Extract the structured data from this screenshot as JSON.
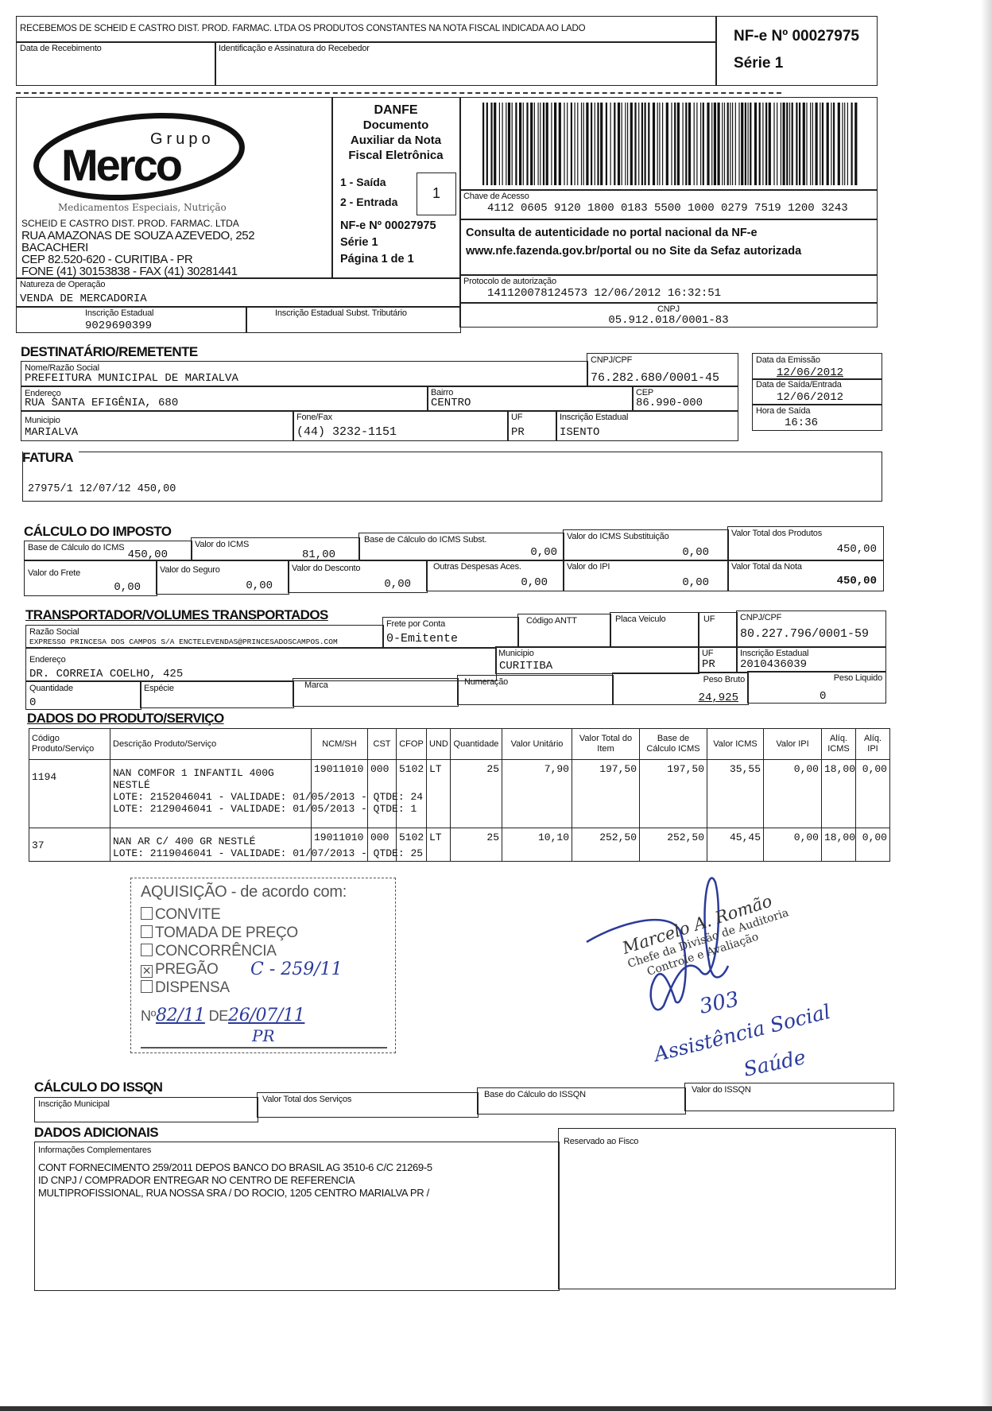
{
  "receipt": {
    "text": "RECEBEMOS DE SCHEID E CASTRO DIST. PROD. FARMAC. LTDA OS PRODUTOS CONSTANTES NA NOTA FISCAL INDICADA AO LADO",
    "date_label": "Data de Recebimento",
    "id_label": "Identificação e Assinatura do Recebedor",
    "nfe_number": "NF-e Nº 00027975",
    "serie": "Série 1"
  },
  "emitter": {
    "logo_top": "Grupo",
    "logo_main": "Merco",
    "tagline": "Medicamentos Especiais, Nutrição",
    "name": "SCHEID E CASTRO DIST. PROD. FARMAC. LTDA",
    "address": "RUA AMAZONAS DE SOUZA AZEVEDO, 252",
    "district": "BACACHERI",
    "cep_city": "CEP 82.520-620 - CURITIBA - PR",
    "phone": "FONE (41) 30153838 - FAX (41) 30281441"
  },
  "danfe": {
    "title": "DANFE",
    "sub1": "Documento",
    "sub2": "Auxiliar da Nota",
    "sub3": "Fiscal Eletrônica",
    "saida": "1 - Saída",
    "entrada": "2 - Entrada",
    "type_value": "1",
    "nfe_number": "NF-e Nº 00027975",
    "serie": "Série 1",
    "page": "Página 1 de 1"
  },
  "access": {
    "key_label": "Chave de Acesso",
    "key": "4112 0605 9120 1800 0183 5500 1000 0279 7519 1200 3243",
    "consulta1": "Consulta de autenticidade no portal nacional da NF-e",
    "consulta2": "www.nfe.fazenda.gov.br/portal ou no Site da Sefaz autorizada",
    "protocol_label": "Protocolo de autorização",
    "protocol": "141120078124573 12/06/2012 16:32:51",
    "cnpj_label": "CNPJ",
    "cnpj": "05.912.018/0001-83"
  },
  "nature": {
    "label": "Natureza de Operação",
    "value": "VENDA DE MERCADORIA"
  },
  "ie": {
    "label": "Inscrição Estadual",
    "value": "9029690399"
  },
  "ie_st": {
    "label": "Inscrição Estadual Subst. Tributário",
    "value": ""
  },
  "dest": {
    "title": "DESTINATÁRIO/REMETENTE",
    "name_label": "Nome/Razão Social",
    "name": "PREFEITURA MUNICIPAL DE MARIALVA",
    "cnpj_label": "CNPJ/CPF",
    "cnpj": "76.282.680/0001-45",
    "address_label": "Endereço",
    "address": "RUA SANTA EFIGÊNIA, 680",
    "district_label": "Bairro",
    "district": "CENTRO",
    "cep_label": "CEP",
    "cep": "86.990-000",
    "city_label": "Municipio",
    "city": "MARIALVA",
    "phone_label": "Fone/Fax",
    "phone": "(44) 3232-1151",
    "uf_label": "UF",
    "uf": "PR",
    "ie_label": "Inscrição Estadual",
    "ie": "ISENTO",
    "emission_label": "Data da Emissão",
    "emission": "12/06/2012",
    "exit_label": "Data de Saída/Entrada",
    "exit": "12/06/2012",
    "time_label": "Hora de Saída",
    "time": "16:36"
  },
  "fatura": {
    "title": "FATURA",
    "value": "27975/1  12/07/12  450,00"
  },
  "imposto": {
    "title": "CÁLCULO DO IMPOSTO",
    "base_icms": {
      "label": "Base de Cálculo do ICMS",
      "value": "450,00"
    },
    "icms": {
      "label": "Valor do ICMS",
      "value": "81,00"
    },
    "base_st": {
      "label": "Base de Cálculo do ICMS Subst.",
      "value": "0,00"
    },
    "icms_st": {
      "label": "Valor do ICMS Substituição",
      "value": "0,00"
    },
    "total_prod": {
      "label": "Valor Total dos Produtos",
      "value": "450,00"
    },
    "frete": {
      "label": "Valor do Frete",
      "value": "0,00"
    },
    "seguro": {
      "label": "Valor do Seguro",
      "value": "0,00"
    },
    "desconto": {
      "label": "Valor do Desconto",
      "value": "0,00"
    },
    "outras": {
      "label": "Outras Despesas Aces.",
      "value": "0,00"
    },
    "ipi": {
      "label": "Valor do IPI",
      "value": "0,00"
    },
    "total_nota": {
      "label": "Valor Total da Nota",
      "value": "450,00"
    }
  },
  "transport": {
    "title": "TRANSPORTADOR/VOLUMES TRANSPORTADOS",
    "name_label": "Razão Social",
    "name": "EXPRESSO PRINCESA DOS CAMPOS S/A ENCTELEVENDAS@PRINCESADOSCAMPOS.COM",
    "freight_label": "Frete por Conta",
    "freight": "0-Emitente",
    "antt_label": "Código ANTT",
    "plate_label": "Placa Veiculo",
    "uf1_label": "UF",
    "cnpj_label": "CNPJ/CPF",
    "cnpj": "80.227.796/0001-59",
    "address_label": "Endereço",
    "address": "DR. CORREIA COELHO, 425",
    "city_label": "Municipio",
    "city": "CURITIBA",
    "uf_label": "UF",
    "uf": "PR",
    "ie_label": "Inscrição Estadual",
    "ie": "2010436039",
    "qty_label": "Quantidade",
    "qty": "0",
    "species_label": "Espécie",
    "brand_label": "Marca",
    "numbering_label": "Numeração",
    "gross_label": "Peso Bruto",
    "gross": "24,925",
    "net_label": "Peso Liquido",
    "net": "0"
  },
  "products": {
    "title": "DADOS DO PRODUTO/SERVIÇO",
    "headers": [
      "Código Produto/Serviço",
      "Descrição Produto/Serviço",
      "NCM/SH",
      "CST",
      "CFOP",
      "UND",
      "Quantidade",
      "Valor Unitário",
      "Valor Total do Item",
      "Base de Cálculo ICMS",
      "Valor ICMS",
      "Valor IPI",
      "Alíq. ICMS",
      "Alíq. IPI"
    ],
    "rows": [
      {
        "code": "1194",
        "desc": "NAN COMFOR 1 INFANTIL 400G",
        "desc2": "NESTLÉ",
        "lots": [
          "LOTE: 2152046041 - VALIDADE: 01/05/2013 - QTDE: 24",
          "LOTE: 2129046041 - VALIDADE: 01/05/2013 - QTDE: 1"
        ],
        "ncm": "19011010",
        "cst": "000",
        "cfop": "5102",
        "und": "LT",
        "qty": "25",
        "unit": "7,90",
        "total": "197,50",
        "base": "197,50",
        "icms": "35,55",
        "ipi": "0,00",
        "aliq_icms": "18,00",
        "aliq_ipi": "0,00"
      },
      {
        "code": "37",
        "desc": "NAN AR C/ 400 GR NESTLÉ",
        "desc2": "",
        "lots": [
          "LOTE: 2119046041 - VALIDADE: 01/07/2013 - QTDE: 25"
        ],
        "ncm": "19011010",
        "cst": "000",
        "cfop": "5102",
        "und": "LT",
        "qty": "25",
        "unit": "10,10",
        "total": "252,50",
        "base": "252,50",
        "icms": "45,45",
        "ipi": "0,00",
        "aliq_icms": "18,00",
        "aliq_ipi": "0,00"
      }
    ]
  },
  "stamp": {
    "title": "AQUISIÇÃO - de acordo com:",
    "options": [
      {
        "label": "CONVITE",
        "checked": false
      },
      {
        "label": "TOMADA DE PREÇO",
        "checked": false
      },
      {
        "label": "CONCORRÊNCIA",
        "checked": false
      },
      {
        "label": "PREGÃO",
        "checked": true
      },
      {
        "label": "DISPENSA",
        "checked": false
      }
    ],
    "pregao_note": "C - 259/11",
    "number_prefix": "Nº",
    "number": "82/11",
    "date_prefix": "DE",
    "date": "26/07/11",
    "initials": "PR"
  },
  "signature": {
    "name": "Marcelo A. Romão",
    "role1": "Chefe da Divisão de Auditoria",
    "role2": "Controle e Avaliação",
    "note1": "303",
    "note2": "Assistência Social",
    "note3": "Saúde",
    "ink_color": "#2a3b9a"
  },
  "issqn": {
    "title": "CÁLCULO DO ISSQN",
    "im_label": "Inscrição Municipal",
    "services_label": "Valor Total dos Serviços",
    "base_label": "Base do Cálculo do ISSQN",
    "value_label": "Valor do ISSQN"
  },
  "additional": {
    "title": "DADOS ADICIONAIS",
    "info_label": "Informações Complementares",
    "info_lines": [
      "CONT FORNECIMENTO 259/2011 DEPOS BANCO DO BRASIL AG 3510-6 C/C 21269-5",
      "ID CNPJ / COMPRADOR ENTREGAR NO CENTRO DE REFERENCIA",
      "MULTIPROFISSIONAL, RUA NOSSA SRA / DO ROCIO, 1205 CENTRO MARIALVA PR /"
    ],
    "fisco_label": "Reservado ao Fisco"
  }
}
